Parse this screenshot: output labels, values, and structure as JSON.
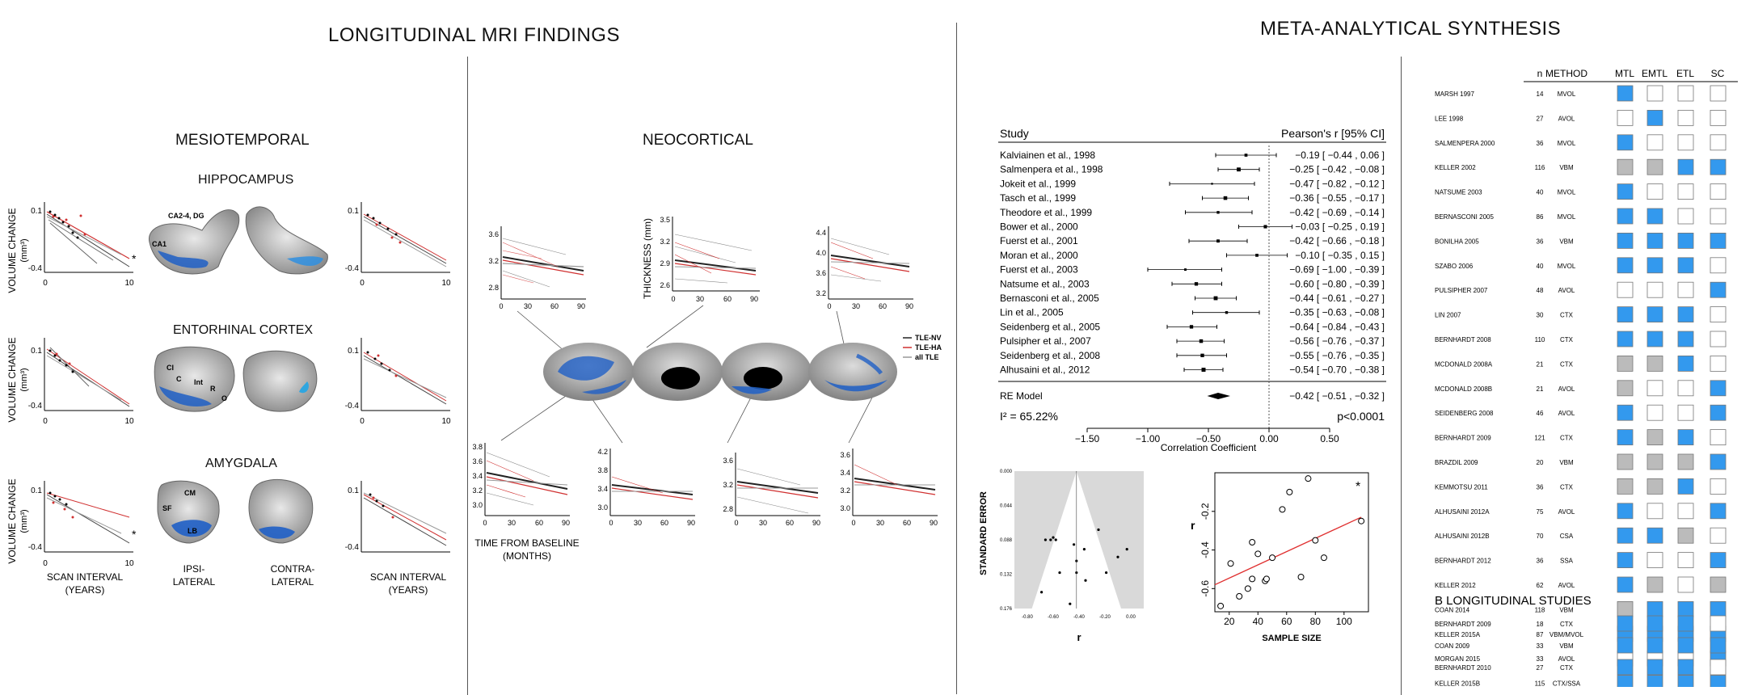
{
  "left_panel": {
    "title": "LONGITUDINAL MRI FINDINGS",
    "mesio_title": "MESIOTEMPORAL",
    "neo_title": "NEOCORTICAL",
    "structures": [
      {
        "name": "HIPPOCAMPUS",
        "labels": [
          "CA2-4, DG",
          "CA1"
        ]
      },
      {
        "name": "ENTORHINAL CORTEX",
        "labels": [
          "CI",
          "C",
          "Int",
          "R",
          "O"
        ]
      },
      {
        "name": "AMYGDALA",
        "labels": [
          "CM",
          "SF",
          "LB"
        ]
      }
    ],
    "y_label": "VOLUME CHANGE",
    "y_unit": "(mm³)",
    "y_ticks": [
      "0.1",
      "-0.4"
    ],
    "x_ticks": [
      "0",
      "10"
    ],
    "star": "*",
    "x_label_scan": "SCAN INTERVAL",
    "x_label_years": "(YEARS)",
    "ipsi": [
      "IPSI-",
      "LATERAL"
    ],
    "contra": [
      "CONTRA-",
      "LATERAL"
    ],
    "thickness_label": "THICKNESS (mm)",
    "time_label": "TIME FROM BASELINE",
    "time_unit": "(MONTHS)",
    "neo_x_ticks": [
      "0",
      "30",
      "60",
      "90"
    ],
    "neo_plots_top": [
      {
        "y_ticks": [
          "3.6",
          "3.2",
          "2.8"
        ]
      },
      {
        "y_ticks": [
          "3.5",
          "3.2",
          "2.9",
          "2.6"
        ]
      },
      {
        "y_ticks": [
          "4.4",
          "4.0",
          "3.6",
          "3.2"
        ]
      }
    ],
    "neo_plots_bottom": [
      {
        "y_ticks": [
          "3.8",
          "3.6",
          "3.4",
          "3.2",
          "3.0"
        ]
      },
      {
        "y_ticks": [
          "4.2",
          "3.8",
          "3.4",
          "3.0"
        ]
      },
      {
        "y_ticks": [
          "3.6",
          "3.2",
          "2.8"
        ]
      },
      {
        "y_ticks": [
          "3.6",
          "3.4",
          "3.2",
          "3.0"
        ]
      }
    ],
    "legend": [
      {
        "label": "TLE-NV",
        "color": "#222222"
      },
      {
        "label": "TLE-HA",
        "color": "#d03030"
      },
      {
        "label": "all TLE",
        "color": "#999999"
      }
    ]
  },
  "right_panel": {
    "title": "META-ANALYTICAL SYNTHESIS",
    "forest": {
      "col_study": "Study",
      "col_effect": "Pearson's r [95% CI]",
      "studies": [
        {
          "name": "Kalviainen et al., 1998",
          "ci_text": "−0.19 [ −0.44 ,  0.06 ]",
          "r": -0.19,
          "lo": -0.44,
          "hi": 0.06
        },
        {
          "name": "Salmenpera et al., 1998",
          "ci_text": "−0.25 [ −0.42 , −0.08 ]",
          "r": -0.25,
          "lo": -0.42,
          "hi": -0.08
        },
        {
          "name": "Jokeit et al., 1999",
          "ci_text": "−0.47 [ −0.82 , −0.12 ]",
          "r": -0.47,
          "lo": -0.82,
          "hi": -0.12
        },
        {
          "name": "Tasch et al., 1999",
          "ci_text": "−0.36 [ −0.55 , −0.17 ]",
          "r": -0.36,
          "lo": -0.55,
          "hi": -0.17
        },
        {
          "name": "Theodore et al., 1999",
          "ci_text": "−0.42 [ −0.69 , −0.14 ]",
          "r": -0.42,
          "lo": -0.69,
          "hi": -0.14
        },
        {
          "name": "Bower et al., 2000",
          "ci_text": "−0.03 [ −0.25 ,  0.19 ]",
          "r": -0.03,
          "lo": -0.25,
          "hi": 0.19
        },
        {
          "name": "Fuerst et al., 2001",
          "ci_text": "−0.42 [ −0.66 , −0.18 ]",
          "r": -0.42,
          "lo": -0.66,
          "hi": -0.18
        },
        {
          "name": "Moran et al., 2000",
          "ci_text": "−0.10 [ −0.35 ,  0.15 ]",
          "r": -0.1,
          "lo": -0.35,
          "hi": 0.15
        },
        {
          "name": "Fuerst et al., 2003",
          "ci_text": "−0.69 [ −1.00 , −0.39 ]",
          "r": -0.69,
          "lo": -1.0,
          "hi": -0.39
        },
        {
          "name": "Natsume et al., 2003",
          "ci_text": "−0.60 [ −0.80 , −0.39 ]",
          "r": -0.6,
          "lo": -0.8,
          "hi": -0.39
        },
        {
          "name": "Bernasconi et al., 2005",
          "ci_text": "−0.44 [ −0.61 , −0.27 ]",
          "r": -0.44,
          "lo": -0.61,
          "hi": -0.27
        },
        {
          "name": "Lin et al., 2005",
          "ci_text": "−0.35 [ −0.63 , −0.08 ]",
          "r": -0.35,
          "lo": -0.63,
          "hi": -0.08
        },
        {
          "name": "Seidenberg et al., 2005",
          "ci_text": "−0.64 [ −0.84 , −0.43 ]",
          "r": -0.64,
          "lo": -0.84,
          "hi": -0.43
        },
        {
          "name": "Pulsipher et al., 2007",
          "ci_text": "−0.56 [ −0.76 , −0.37 ]",
          "r": -0.56,
          "lo": -0.76,
          "hi": -0.37
        },
        {
          "name": "Seidenberg et al., 2008",
          "ci_text": "−0.55 [ −0.76 , −0.35 ]",
          "r": -0.55,
          "lo": -0.76,
          "hi": -0.35
        },
        {
          "name": "Alhusaini et al., 2012",
          "ci_text": "−0.54 [ −0.70 , −0.38 ]",
          "r": -0.54,
          "lo": -0.7,
          "hi": -0.38
        }
      ],
      "re_label": "RE Model",
      "re_text": "−0.42 [ −0.51 , −0.32 ]",
      "re_r": -0.42,
      "re_lo": -0.51,
      "re_hi": -0.32,
      "i2": "I² = 65.22%",
      "p": "p<0.0001",
      "x_ticks": [
        "−1.50",
        "−1.00",
        "−0.50",
        "0.00",
        "0.50"
      ],
      "x_tick_values": [
        -1.5,
        -1.0,
        -0.5,
        0.0,
        0.5
      ],
      "x_label": "Correlation Coefficient"
    },
    "funnel": {
      "y_label": "STANDARD ERROR",
      "x_label": "r",
      "y_ticks": [
        "0.000",
        "0.044",
        "0.088",
        "0.132",
        "0.176"
      ],
      "x_ticks": [
        "-0.80",
        "-0.60",
        "-0.40",
        "-0.20",
        "0.00"
      ],
      "points": [
        [
          -0.62,
          0.088
        ],
        [
          -0.66,
          0.088
        ],
        [
          -0.6,
          0.085
        ],
        [
          -0.58,
          0.088
        ],
        [
          -0.44,
          0.094
        ],
        [
          -0.42,
          0.13
        ],
        [
          -0.42,
          0.115
        ],
        [
          -0.36,
          0.1
        ],
        [
          -0.25,
          0.075
        ],
        [
          -0.19,
          0.13
        ],
        [
          -0.1,
          0.11
        ],
        [
          -0.03,
          0.1
        ],
        [
          -0.55,
          0.13
        ],
        [
          -0.69,
          0.155
        ],
        [
          -0.47,
          0.17
        ],
        [
          -0.35,
          0.14
        ]
      ]
    },
    "scatter": {
      "y_label": "r",
      "x_label": "SAMPLE SIZE",
      "x_ticks": [
        "20",
        "40",
        "60",
        "80",
        "100"
      ],
      "x_tick_values": [
        20,
        40,
        60,
        80,
        100
      ],
      "y_ticks": [
        "-0.2",
        "-0.4",
        "-0.6"
      ],
      "y_tick_values": [
        -0.2,
        -0.4,
        -0.6
      ],
      "xlim": [
        10,
        117
      ],
      "ylim": [
        -0.72,
        0.0
      ],
      "star": "*",
      "points": [
        [
          14,
          -0.69
        ],
        [
          21,
          -0.47
        ],
        [
          27,
          -0.64
        ],
        [
          33,
          -0.6
        ],
        [
          36,
          -0.36
        ],
        [
          36,
          -0.55
        ],
        [
          40,
          -0.42
        ],
        [
          45,
          -0.56
        ],
        [
          46,
          -0.55
        ],
        [
          50,
          -0.44
        ],
        [
          57,
          -0.19
        ],
        [
          62,
          -0.1
        ],
        [
          70,
          -0.54
        ],
        [
          75,
          -0.03
        ],
        [
          80,
          -0.35
        ],
        [
          86,
          -0.44
        ],
        [
          112,
          -0.25
        ]
      ],
      "fit": [
        [
          10,
          -0.58
        ],
        [
          112,
          -0.23
        ]
      ]
    },
    "table": {
      "headers": [
        "n",
        "METHOD",
        "MTL",
        "EMTL",
        "ETL",
        "SC"
      ],
      "rows": [
        {
          "name": "MARSH 1997",
          "n": "14",
          "method": "MVOL",
          "cells": [
            "b",
            "w",
            "w",
            "w"
          ]
        },
        {
          "name": "LEE 1998",
          "n": "27",
          "method": "AVOL",
          "cells": [
            "w",
            "b",
            "w",
            "w"
          ]
        },
        {
          "name": "SALMENPERA 2000",
          "n": "36",
          "method": "MVOL",
          "cells": [
            "b",
            "w",
            "w",
            "w"
          ]
        },
        {
          "name": "KELLER 2002",
          "n": "116",
          "method": "VBM",
          "cells": [
            "g",
            "g",
            "b",
            "b"
          ]
        },
        {
          "name": "NATSUME 2003",
          "n": "40",
          "method": "MVOL",
          "cells": [
            "b",
            "w",
            "w",
            "w"
          ]
        },
        {
          "name": "BERNASCONI 2005",
          "n": "86",
          "method": "MVOL",
          "cells": [
            "b",
            "b",
            "w",
            "w"
          ]
        },
        {
          "name": "BONILHA 2005",
          "n": "36",
          "method": "VBM",
          "cells": [
            "b",
            "b",
            "b",
            "b"
          ]
        },
        {
          "name": "SZABO 2006",
          "n": "40",
          "method": "MVOL",
          "cells": [
            "b",
            "b",
            "b",
            "w"
          ]
        },
        {
          "name": "PULSIPHER 2007",
          "n": "48",
          "method": "AVOL",
          "cells": [
            "w",
            "w",
            "w",
            "b"
          ]
        },
        {
          "name": "LIN 2007",
          "n": "30",
          "method": "CTX",
          "cells": [
            "b",
            "b",
            "b",
            "w"
          ]
        },
        {
          "name": "BERNHARDT 2008",
          "n": "110",
          "method": "CTX",
          "cells": [
            "b",
            "b",
            "b",
            "w"
          ]
        },
        {
          "name": "MCDONALD 2008A",
          "n": "21",
          "method": "CTX",
          "cells": [
            "g",
            "g",
            "b",
            "w"
          ]
        },
        {
          "name": "MCDONALD 2008B",
          "n": "21",
          "method": "AVOL",
          "cells": [
            "g",
            "w",
            "w",
            "b"
          ]
        },
        {
          "name": "SEIDENBERG 2008",
          "n": "46",
          "method": "AVOL",
          "cells": [
            "b",
            "w",
            "w",
            "b"
          ]
        },
        {
          "name": "BERNHARDT 2009",
          "n": "121",
          "method": "CTX",
          "cells": [
            "b",
            "g",
            "b",
            "w"
          ]
        },
        {
          "name": "BRAZDIL 2009",
          "n": "20",
          "method": "VBM",
          "cells": [
            "g",
            "g",
            "g",
            "b"
          ]
        },
        {
          "name": "KEMMOTSU 2011",
          "n": "36",
          "method": "CTX",
          "cells": [
            "g",
            "g",
            "b",
            "w"
          ]
        },
        {
          "name": "ALHUSAINI 2012A",
          "n": "75",
          "method": "AVOL",
          "cells": [
            "b",
            "w",
            "w",
            "b"
          ]
        },
        {
          "name": "ALHUSAINI 2012B",
          "n": "70",
          "method": "CSA",
          "cells": [
            "b",
            "b",
            "g",
            "w"
          ]
        },
        {
          "name": "BERNHARDT 2012",
          "n": "36",
          "method": "SSA",
          "cells": [
            "b",
            "w",
            "w",
            "b"
          ]
        },
        {
          "name": "KELLER 2012",
          "n": "62",
          "method": "AVOL",
          "cells": [
            "b",
            "g",
            "w",
            "g"
          ]
        },
        {
          "name": "COAN 2014",
          "n": "118",
          "method": "VBM",
          "cells": [
            "g",
            "b",
            "b",
            "b"
          ]
        },
        {
          "name": "KELLER 2015A",
          "n": "87",
          "method": "VBM/MVOL",
          "cells": [
            "b",
            "b",
            "b",
            "b"
          ]
        },
        {
          "name": "MORGAN 2015",
          "n": "33",
          "method": "AVOL",
          "cells": [
            "w",
            "w",
            "w",
            "b"
          ]
        },
        {
          "name": "KELLER 2015B",
          "n": "115",
          "method": "CTX/SSA",
          "cells": [
            "b",
            "b",
            "b",
            "b"
          ]
        }
      ],
      "section_b": "B  LONGITUDINAL STUDIES",
      "rows_b": [
        {
          "name": "BERNHARDT 2009",
          "n": "18",
          "method": "CTX",
          "cells": [
            "b",
            "b",
            "b",
            "w"
          ]
        },
        {
          "name": "COAN 2009",
          "n": "33",
          "method": "VBM",
          "cells": [
            "b",
            "b",
            "b",
            "b"
          ]
        },
        {
          "name": "BERNHARDT 2010",
          "n": "27",
          "method": "CTX",
          "cells": [
            "b",
            "b",
            "b",
            "w"
          ]
        }
      ],
      "colors": {
        "b": "#3399ee",
        "g": "#bbbbbb",
        "w": "#ffffff"
      }
    }
  }
}
